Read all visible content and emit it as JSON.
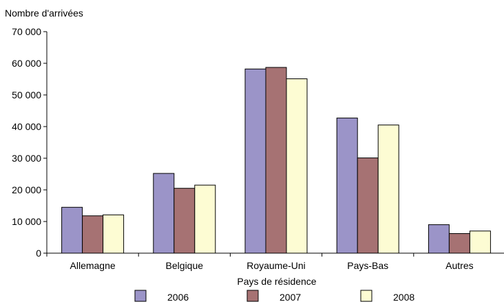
{
  "chart_data": {
    "type": "bar",
    "ylabel": "Nombre d'arrivées",
    "xlabel": "Pays de résidence",
    "categories": [
      "Allemagne",
      "Belgique",
      "Royaume-Uni",
      "Pays-Bas",
      "Autres"
    ],
    "series": [
      {
        "name": "2006",
        "color": "#9b94c8",
        "values": [
          14500,
          25200,
          58200,
          42700,
          9000
        ]
      },
      {
        "name": "2007",
        "color": "#a67273",
        "values": [
          11800,
          20500,
          58700,
          30100,
          6200
        ]
      },
      {
        "name": "2008",
        "color": "#fdfcd3",
        "values": [
          12100,
          21500,
          55100,
          40500,
          7000
        ]
      }
    ],
    "ylim": [
      0,
      70000
    ],
    "yticks": [
      0,
      10000,
      20000,
      30000,
      40000,
      50000,
      60000,
      70000
    ],
    "ytick_labels": [
      "0",
      "10 000",
      "20 000",
      "30 000",
      "40 000",
      "50 000",
      "60 000",
      "70 000"
    ],
    "grid": false,
    "legend_position": "bottom"
  }
}
